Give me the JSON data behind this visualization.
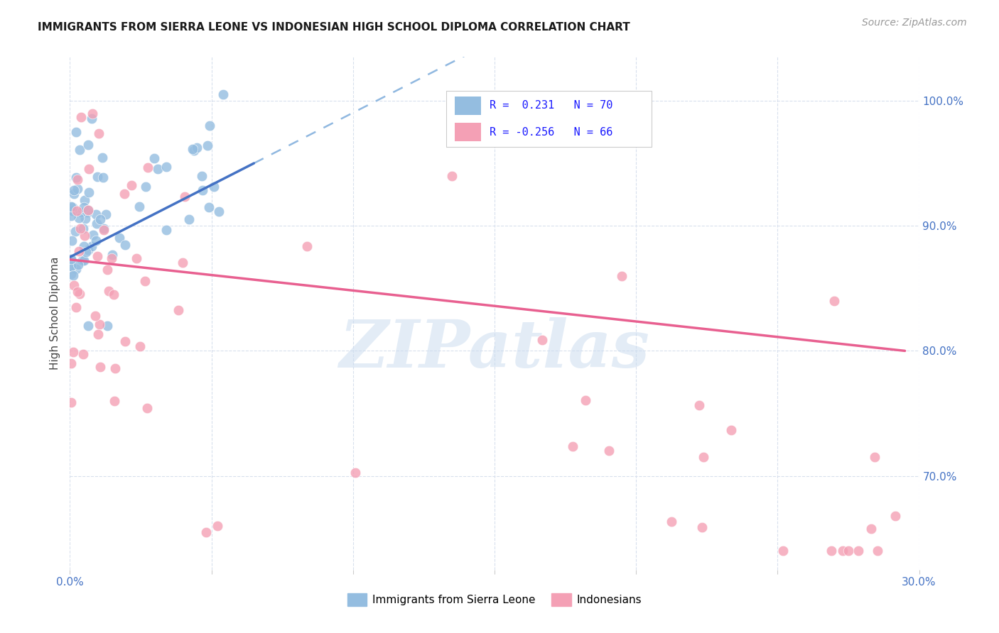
{
  "title": "IMMIGRANTS FROM SIERRA LEONE VS INDONESIAN HIGH SCHOOL DIPLOMA CORRELATION CHART",
  "source": "Source: ZipAtlas.com",
  "ylabel": "High School Diploma",
  "yticks_labels": [
    "100.0%",
    "90.0%",
    "80.0%",
    "70.0%"
  ],
  "yticks_vals": [
    1.0,
    0.9,
    0.8,
    0.7
  ],
  "xlim": [
    0.0,
    0.3
  ],
  "ylim": [
    0.625,
    1.035
  ],
  "legend_label1": "Immigrants from Sierra Leone",
  "legend_label2": "Indonesians",
  "sierra_leone_color": "#94bde0",
  "indonesian_color": "#f4a0b5",
  "blue_line_color": "#4472c4",
  "pink_line_color": "#e86090",
  "dashed_line_color": "#90b8e0",
  "sl_line_x0": 0.0,
  "sl_line_y0": 0.875,
  "sl_line_x1": 0.065,
  "sl_line_y1": 0.95,
  "ind_line_x0": 0.0,
  "ind_line_y0": 0.873,
  "ind_line_x1": 0.295,
  "ind_line_y1": 0.8,
  "background_color": "#ffffff",
  "grid_color": "#d8e0ed",
  "title_fontsize": 11,
  "source_fontsize": 10,
  "tick_fontsize": 11,
  "ylabel_fontsize": 11,
  "watermark_text": "ZIPatlas",
  "watermark_color": "#ccddf0"
}
